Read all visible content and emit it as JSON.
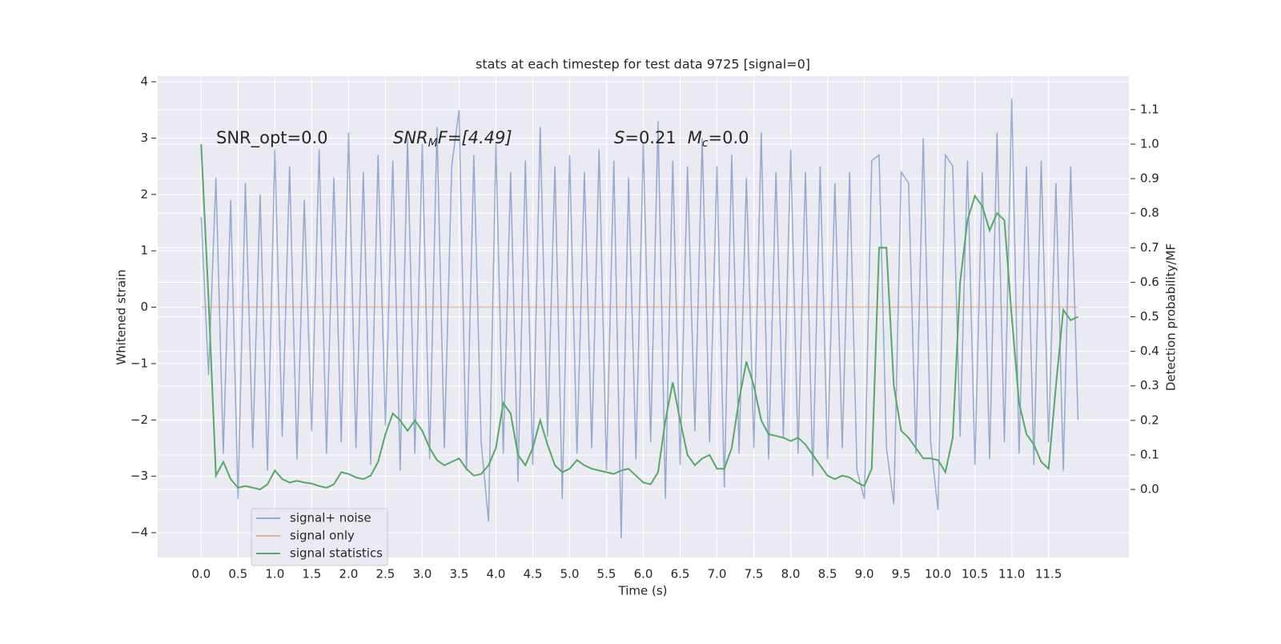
{
  "chart_data": {
    "type": "line",
    "title": "stats at each timestep for test data 9725 [signal=0]",
    "xlabel": "Time (s)",
    "ylabel": "Whitened strain",
    "y2label": "Detection probability/MF",
    "annotations": [
      "SNR_opt=0.0",
      [
        "SNR",
        "M",
        "F=[4.49]"
      ],
      [
        "S",
        "=0.21",
        "M",
        "c",
        "=0.0"
      ]
    ],
    "xlim": [
      -0.59,
      12.59
    ],
    "ylim": [
      -4.44,
      4.1
    ],
    "y2lim": [
      -0.197,
      1.197
    ],
    "xticks": [
      {
        "value": 0,
        "label": "0.0"
      },
      {
        "value": 0.5,
        "label": "0.5"
      },
      {
        "value": 1,
        "label": "1.0"
      },
      {
        "value": 1.5,
        "label": "1.5"
      },
      {
        "value": 2,
        "label": "2.0"
      },
      {
        "value": 2.5,
        "label": "2.5"
      },
      {
        "value": 3,
        "label": "3.0"
      },
      {
        "value": 3.5,
        "label": "3.5"
      },
      {
        "value": 4,
        "label": "4.0"
      },
      {
        "value": 4.5,
        "label": "4.5"
      },
      {
        "value": 5,
        "label": "5.0"
      },
      {
        "value": 5.5,
        "label": "5.5"
      },
      {
        "value": 6,
        "label": "6.0"
      },
      {
        "value": 6.5,
        "label": "6.5"
      },
      {
        "value": 7,
        "label": "7.0"
      },
      {
        "value": 7.5,
        "label": "7.5"
      },
      {
        "value": 8,
        "label": "8.0"
      },
      {
        "value": 8.5,
        "label": "8.5"
      },
      {
        "value": 9,
        "label": "9.0"
      },
      {
        "value": 9.5,
        "label": "9.5"
      },
      {
        "value": 10,
        "label": "10.0"
      },
      {
        "value": 10.5,
        "label": "10.5"
      },
      {
        "value": 11,
        "label": "11.0"
      },
      {
        "value": 11.5,
        "label": "11.5"
      }
    ],
    "yticks": [
      {
        "value": -4,
        "label": "−4"
      },
      {
        "value": -3,
        "label": "−3"
      },
      {
        "value": -2,
        "label": "−2"
      },
      {
        "value": -1,
        "label": "−1"
      },
      0,
      1,
      2,
      3,
      4
    ],
    "y2ticks": [
      {
        "value": 0,
        "label": "0.0"
      },
      {
        "value": 0.1,
        "label": "0.1"
      },
      {
        "value": 0.2,
        "label": "0.2"
      },
      {
        "value": 0.3,
        "label": "0.3"
      },
      {
        "value": 0.4,
        "label": "0.4"
      },
      {
        "value": 0.5,
        "label": "0.5"
      },
      {
        "value": 0.6,
        "label": "0.6"
      },
      {
        "value": 0.7,
        "label": "0.7"
      },
      {
        "value": 0.8,
        "label": "0.8"
      },
      {
        "value": 0.9,
        "label": "0.9"
      },
      {
        "value": 1,
        "label": "1.0"
      },
      {
        "value": 1.1,
        "label": "1.1"
      }
    ],
    "grid": true,
    "legend": "lower left",
    "x": [
      0,
      0.1,
      0.2,
      0.3,
      0.4,
      0.5,
      0.6,
      0.7,
      0.8,
      0.9,
      1,
      1.1,
      1.2,
      1.3,
      1.4,
      1.5,
      1.6,
      1.7,
      1.8,
      1.9,
      2,
      2.1,
      2.2,
      2.3,
      2.4,
      2.5,
      2.6,
      2.7,
      2.8,
      2.9,
      3,
      3.1,
      3.2,
      3.3,
      3.4,
      3.5,
      3.6,
      3.7,
      3.8,
      3.9,
      4,
      4.1,
      4.2,
      4.3,
      4.4,
      4.5,
      4.6,
      4.7,
      4.8,
      4.9,
      5,
      5.1,
      5.2,
      5.3,
      5.4,
      5.5,
      5.6,
      5.7,
      5.8,
      5.9,
      6,
      6.1,
      6.2,
      6.3,
      6.4,
      6.5,
      6.6,
      6.7,
      6.8,
      6.9,
      7,
      7.1,
      7.2,
      7.3,
      7.4,
      7.5,
      7.6,
      7.7,
      7.8,
      7.9,
      8,
      8.1,
      8.2,
      8.3,
      8.4,
      8.5,
      8.6,
      8.7,
      8.8,
      8.9,
      9,
      9.1,
      9.2,
      9.3,
      9.4,
      9.5,
      9.6,
      9.7,
      9.8,
      9.9,
      10,
      10.1,
      10.2,
      10.3,
      10.4,
      10.5,
      10.6,
      10.7,
      10.8,
      10.9,
      11,
      11.1,
      11.2,
      11.3,
      11.4,
      11.5,
      11.6,
      11.7,
      11.8,
      11.9
    ],
    "series": [
      {
        "name": "signal+ noise",
        "color": "#4c72b0",
        "values": [
          1.6,
          -1.2,
          2.3,
          -2.6,
          1.9,
          -3.4,
          2.2,
          -2.5,
          2.0,
          -2.9,
          2.8,
          -2.3,
          2.5,
          -2.7,
          1.9,
          -2.2,
          2.8,
          -2.6,
          2.3,
          -2.4,
          3.1,
          -2.5,
          2.4,
          -2.8,
          2.7,
          -2.1,
          2.6,
          -2.9,
          3.0,
          -2.6,
          2.9,
          -2.7,
          3.2,
          -2.5,
          2.5,
          3.5,
          -2.9,
          2.7,
          -2.4,
          -3.8,
          2.9,
          -2.6,
          2.4,
          -3.1,
          2.6,
          -2.8,
          3.2,
          -2.3,
          2.5,
          -3.4,
          2.7,
          -2.6,
          2.4,
          -2.5,
          2.8,
          -2.9,
          2.6,
          -4.1,
          2.3,
          -2.7,
          2.9,
          -2.4,
          3.3,
          -3.4,
          2.6,
          -2.8,
          2.5,
          -2.2,
          3.0,
          -2.4,
          2.5,
          -3.2,
          2.7,
          -2.6,
          2.3,
          -2.5,
          3.1,
          -2.7,
          2.4,
          -2.3,
          2.8,
          -2.6,
          2.4,
          -3.0,
          2.5,
          -2.7,
          2.2,
          -2.5,
          2.4,
          -2.9,
          -3.4,
          2.6,
          2.7,
          -2.5,
          -3.5,
          2.4,
          2.2,
          -2.6,
          3.0,
          -2.4,
          -3.6,
          2.7,
          2.5,
          -2.3,
          2.6,
          -2.8,
          2.4,
          -2.7,
          3.1,
          -2.4,
          3.7,
          -2.6,
          2.5,
          -2.8,
          2.6,
          -2.4,
          2.2,
          -2.9,
          2.5,
          -2.0
        ]
      },
      {
        "name": "signal only",
        "color": "#dd8452",
        "values": [
          0,
          0,
          0,
          0,
          0,
          0,
          0,
          0,
          0,
          0,
          0,
          0,
          0,
          0,
          0,
          0,
          0,
          0,
          0,
          0,
          0,
          0,
          0,
          0,
          0,
          0,
          0,
          0,
          0,
          0,
          0,
          0,
          0,
          0,
          0,
          0,
          0,
          0,
          0,
          0,
          0,
          0,
          0,
          0,
          0,
          0,
          0,
          0,
          0,
          0,
          0,
          0,
          0,
          0,
          0,
          0,
          0,
          0,
          0,
          0,
          0,
          0,
          0,
          0,
          0,
          0,
          0,
          0,
          0,
          0,
          0,
          0,
          0,
          0,
          0,
          0,
          0,
          0,
          0,
          0,
          0,
          0,
          0,
          0,
          0,
          0,
          0,
          0,
          0,
          0,
          0,
          0,
          0,
          0,
          0,
          0,
          0,
          0,
          0,
          0,
          0,
          0,
          0,
          0,
          0,
          0,
          0,
          0,
          0,
          0,
          0,
          0,
          0,
          0,
          0,
          0,
          0,
          0,
          0,
          0
        ]
      },
      {
        "name": "signal statistics",
        "color": "#55a868",
        "axis": "y2",
        "values": [
          1.0,
          0.55,
          0.04,
          0.08,
          0.03,
          0.005,
          0.01,
          0.005,
          0.0,
          0.015,
          0.055,
          0.03,
          0.02,
          0.025,
          0.02,
          0.017,
          0.01,
          0.005,
          0.015,
          0.05,
          0.045,
          0.035,
          0.03,
          0.04,
          0.08,
          0.16,
          0.22,
          0.2,
          0.17,
          0.2,
          0.17,
          0.12,
          0.085,
          0.07,
          0.08,
          0.09,
          0.06,
          0.04,
          0.045,
          0.07,
          0.12,
          0.25,
          0.22,
          0.1,
          0.07,
          0.12,
          0.2,
          0.13,
          0.07,
          0.05,
          0.06,
          0.085,
          0.07,
          0.06,
          0.055,
          0.05,
          0.045,
          0.055,
          0.06,
          0.04,
          0.02,
          0.015,
          0.05,
          0.2,
          0.31,
          0.2,
          0.1,
          0.07,
          0.09,
          0.1,
          0.06,
          0.06,
          0.12,
          0.26,
          0.37,
          0.3,
          0.2,
          0.16,
          0.155,
          0.15,
          0.14,
          0.15,
          0.13,
          0.1,
          0.07,
          0.04,
          0.03,
          0.04,
          0.035,
          0.02,
          0.01,
          0.06,
          0.7,
          0.7,
          0.3,
          0.17,
          0.15,
          0.12,
          0.09,
          0.09,
          0.085,
          0.05,
          0.15,
          0.6,
          0.78,
          0.85,
          0.82,
          0.75,
          0.8,
          0.78,
          0.5,
          0.25,
          0.16,
          0.13,
          0.08,
          0.06,
          0.3,
          0.52,
          0.49,
          0.5
        ]
      }
    ]
  }
}
